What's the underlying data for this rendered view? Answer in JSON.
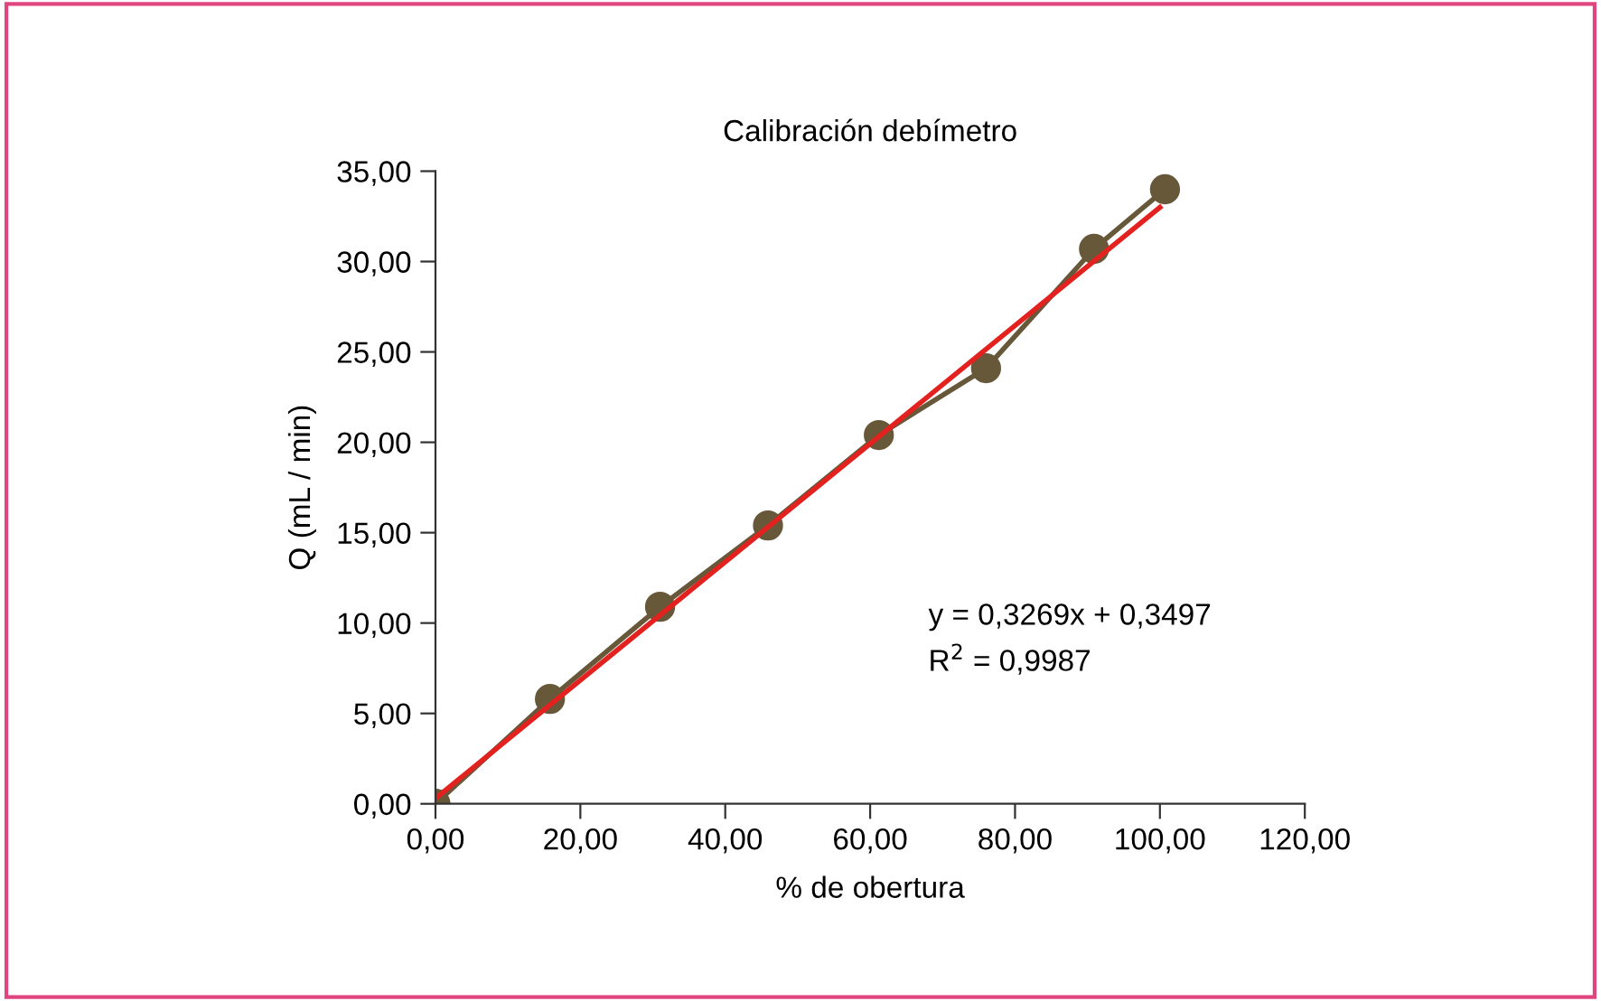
{
  "chart_data": {
    "type": "line",
    "title": "Calibración debímetro",
    "xlabel": "% de obertura",
    "ylabel": "Q (mL / min)",
    "xlim": [
      0,
      120
    ],
    "ylim": [
      0,
      35
    ],
    "xticks": [
      {
        "value": 0,
        "label": "0,00"
      },
      {
        "value": 20,
        "label": "20,00"
      },
      {
        "value": 40,
        "label": "40,00"
      },
      {
        "value": 60,
        "label": "60,00"
      },
      {
        "value": 80,
        "label": "80,00"
      },
      {
        "value": 100,
        "label": "100,00"
      },
      {
        "value": 120,
        "label": "120,00"
      }
    ],
    "yticks": [
      {
        "value": 0,
        "label": "0,00"
      },
      {
        "value": 5,
        "label": "5,00"
      },
      {
        "value": 10,
        "label": "10,00"
      },
      {
        "value": 15,
        "label": "15,00"
      },
      {
        "value": 20,
        "label": "20,00"
      },
      {
        "value": 25,
        "label": "25,00"
      },
      {
        "value": 30,
        "label": "30,00"
      },
      {
        "value": 35,
        "label": "35,00"
      }
    ],
    "grid": false,
    "legend": false,
    "marker": "circle",
    "series": [
      {
        "color": "#67583a",
        "x": [
          0,
          15.8,
          31.0,
          45.9,
          61.2,
          76.0,
          90.9,
          100.7
        ],
        "values": [
          0,
          5.8,
          10.9,
          15.4,
          20.4,
          24.1,
          30.7,
          34.0
        ]
      },
      {
        "type": "line",
        "marker": "none",
        "color": "#e3221f",
        "x": [
          0,
          100
        ],
        "values": [
          0.3,
          33.0
        ]
      }
    ],
    "annotations": [
      "y = 0,3269x + 0,3497\nR$^{2}$ = 0,9987"
    ]
  }
}
